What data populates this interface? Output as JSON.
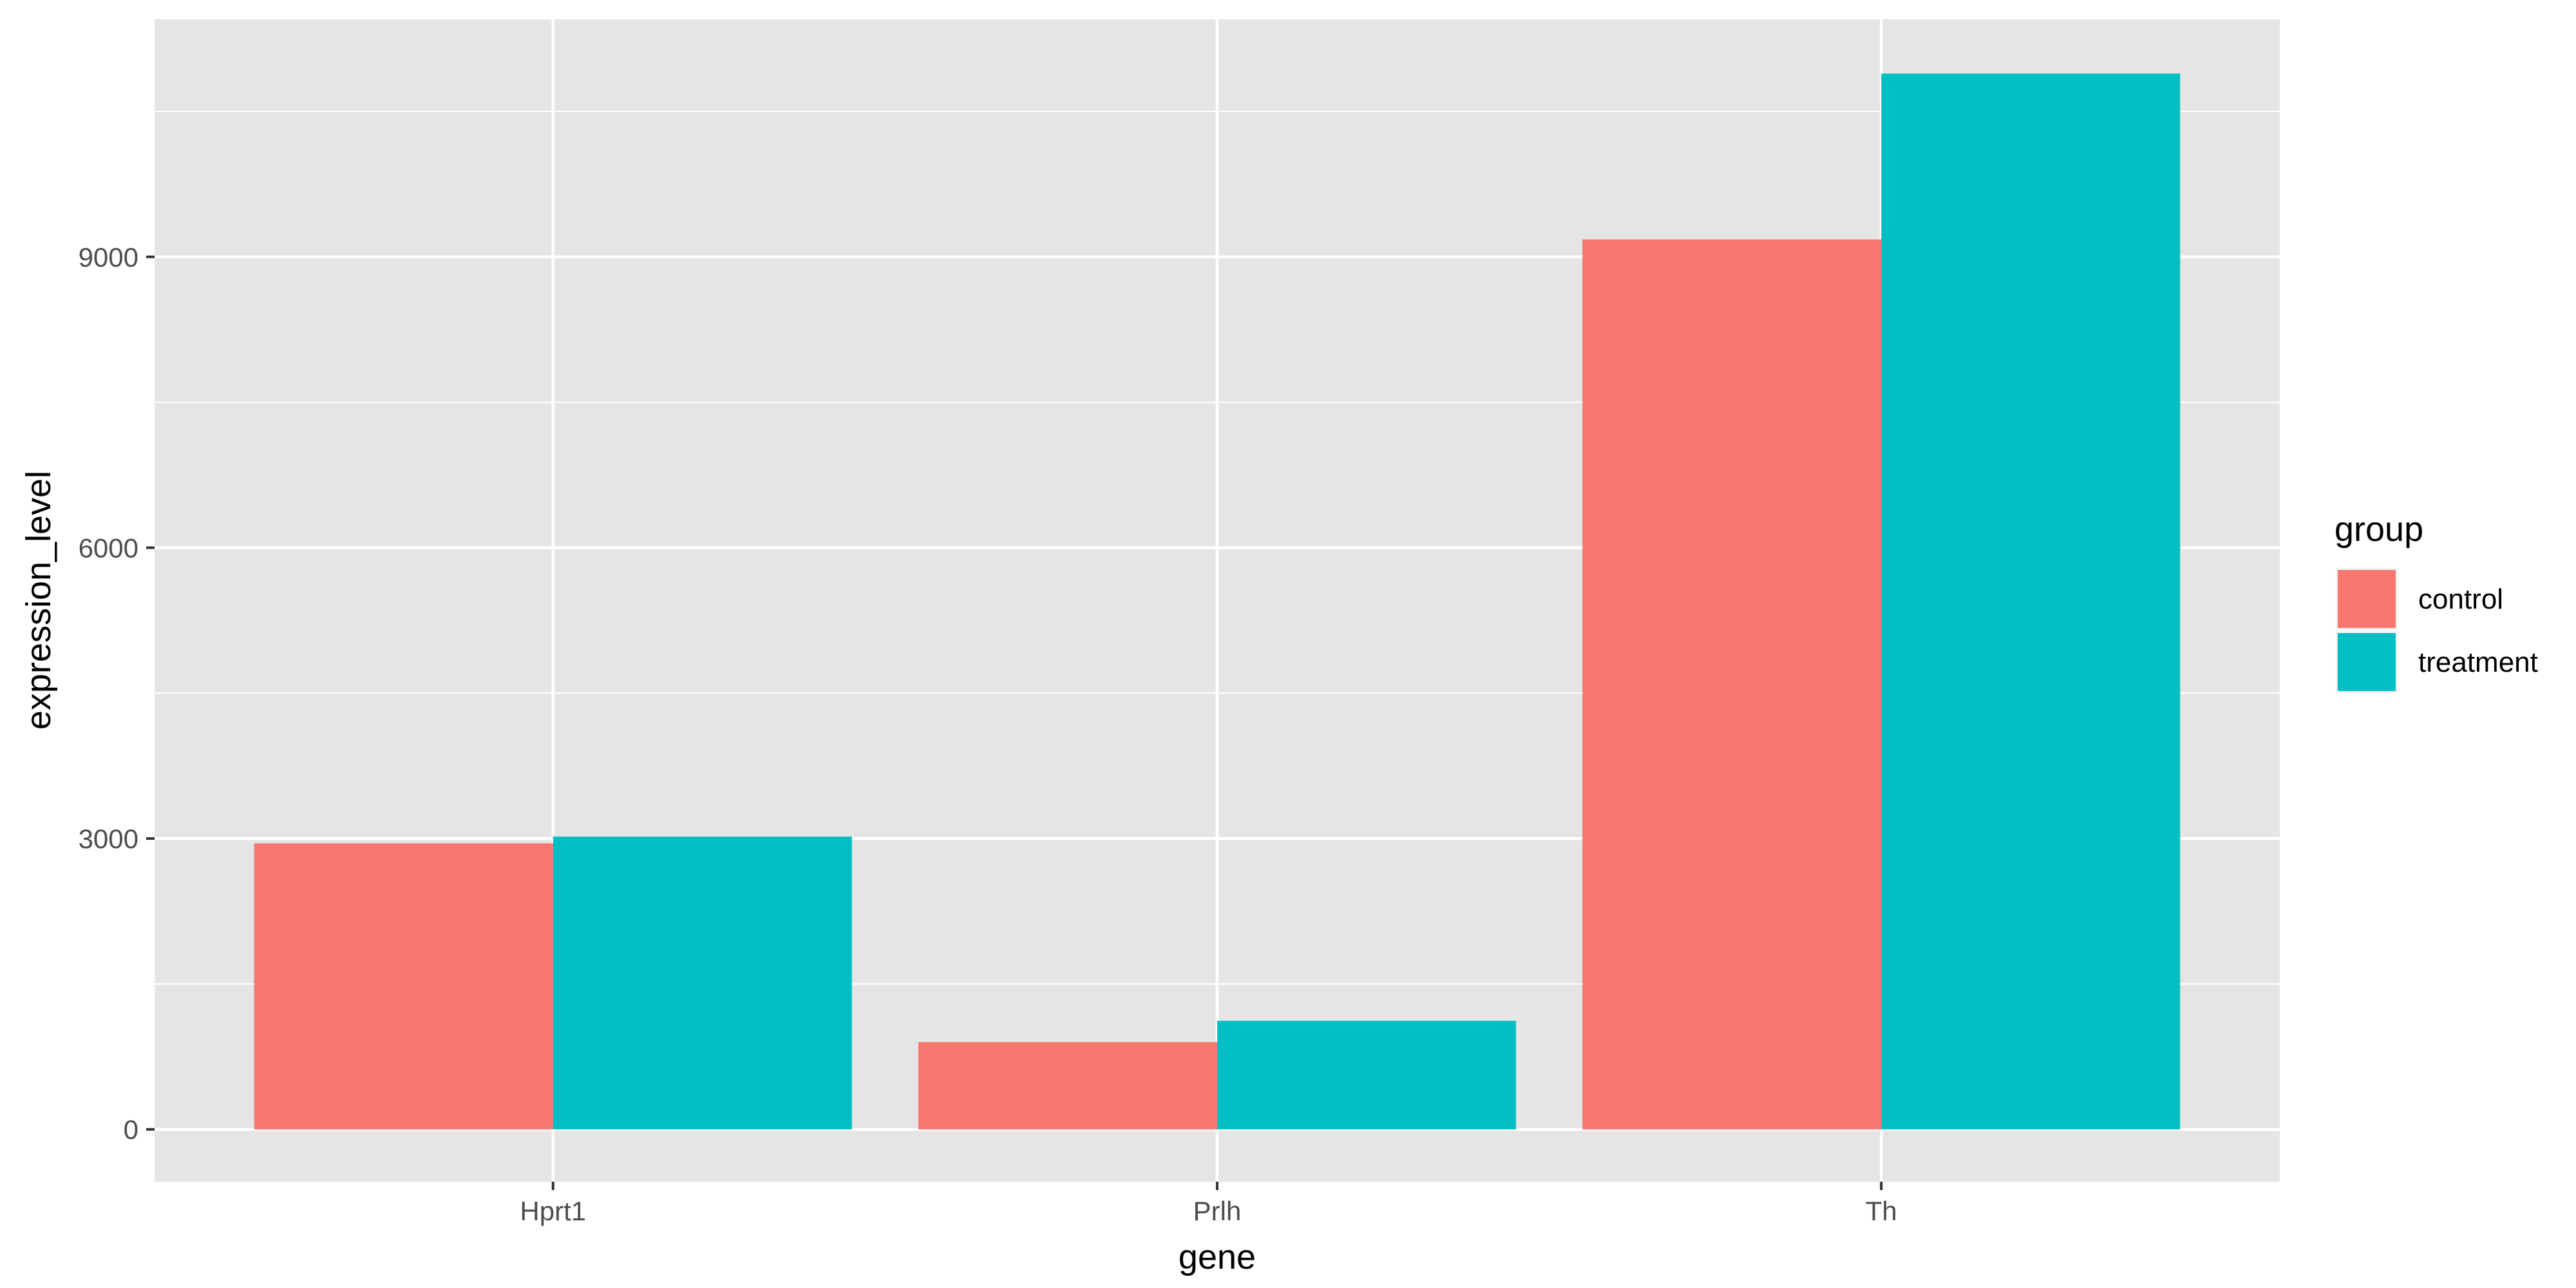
{
  "chart_data": {
    "type": "bar",
    "title": "",
    "xlabel": "gene",
    "ylabel": "expression_level",
    "categories": [
      "Hprt1",
      "Prlh",
      "Th"
    ],
    "series": [
      {
        "name": "control",
        "values": [
          2950,
          900,
          9180
        ],
        "color": "#F8766D"
      },
      {
        "name": "treatment",
        "values": [
          3020,
          1120,
          10890
        ],
        "color": "#00BFC4"
      }
    ],
    "y_ticks": [
      0,
      3000,
      6000,
      9000
    ],
    "ylim": [
      -540,
      11450
    ],
    "grid": true,
    "legend": {
      "title": "group",
      "placement": "right"
    },
    "panel_background": "#E5E5E5",
    "grid_color": "#FFFFFF"
  }
}
